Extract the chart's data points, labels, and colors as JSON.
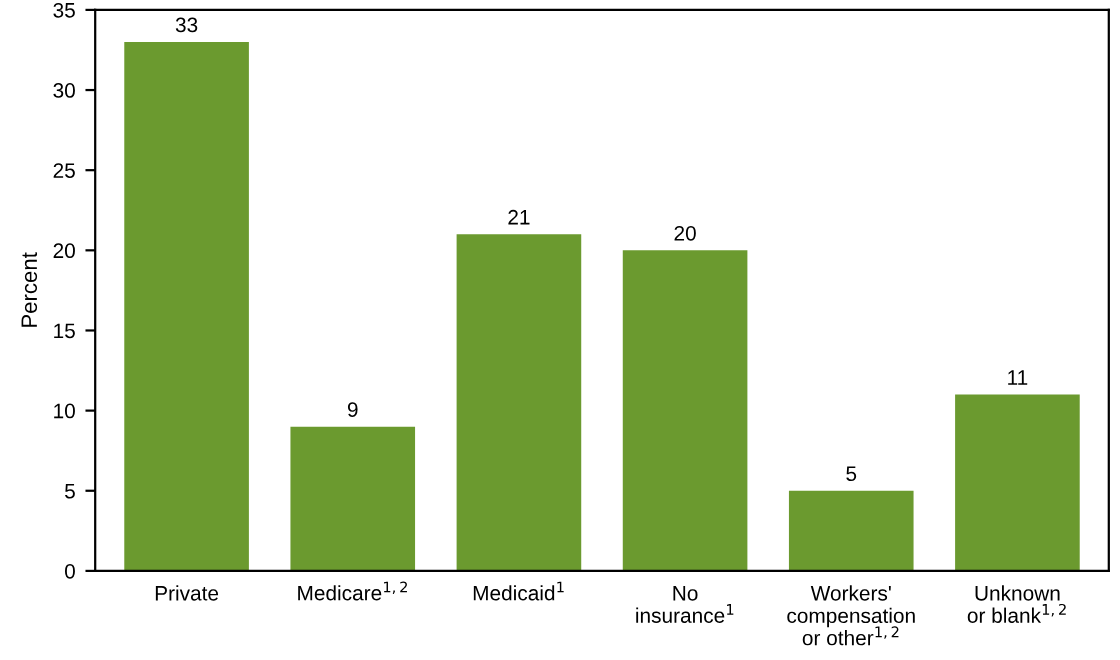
{
  "chart_data": {
    "type": "bar",
    "ylabel": "Percent",
    "categories": [
      "Private",
      "Medicare$^{1,2}$",
      "Medicaid$^{1}$",
      "No\ninsurance$^{1}$",
      "Workers'\ncompensation\nor other$^{1,2}$",
      "Unknown\nor blank$^{1,2}$"
    ],
    "values": [
      33,
      9,
      21,
      20,
      5,
      11
    ],
    "color": "#6b9a2f",
    "ylim": [
      0,
      35
    ],
    "yticks": [
      0,
      5,
      10,
      15,
      20,
      25,
      30,
      35
    ],
    "data_labels": true
  }
}
